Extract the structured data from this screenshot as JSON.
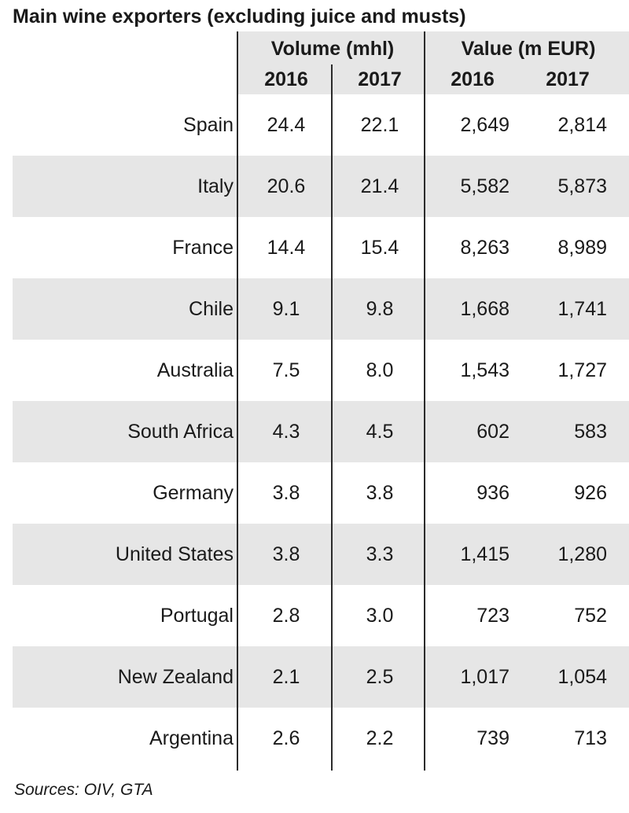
{
  "title": "Main wine exporters (excluding juice and musts)",
  "header": {
    "volume_label": "Volume (mhl)",
    "value_label": "Value (m EUR)",
    "years": [
      "2016",
      "2017",
      "2016",
      "2017"
    ]
  },
  "source": "Sources: OIV, GTA",
  "chart_data": {
    "type": "table",
    "title": "Main wine exporters (excluding juice and musts)",
    "columns": [
      "Volume (mhl) 2016",
      "Volume (mhl) 2017",
      "Value (m EUR) 2016",
      "Value (m EUR) 2017"
    ],
    "rows": [
      {
        "country": "Spain",
        "cells": [
          "24.4",
          "22.1",
          "2,649",
          "2,814"
        ]
      },
      {
        "country": "Italy",
        "cells": [
          "20.6",
          "21.4",
          "5,582",
          "5,873"
        ]
      },
      {
        "country": "France",
        "cells": [
          "14.4",
          "15.4",
          "8,263",
          "8,989"
        ]
      },
      {
        "country": "Chile",
        "cells": [
          "9.1",
          "9.8",
          "1,668",
          "1,741"
        ]
      },
      {
        "country": "Australia",
        "cells": [
          "7.5",
          "8.0",
          "1,543",
          "1,727"
        ]
      },
      {
        "country": "South Africa",
        "cells": [
          "4.3",
          "4.5",
          "602",
          "583"
        ]
      },
      {
        "country": "Germany",
        "cells": [
          "3.8",
          "3.8",
          "936",
          "926"
        ]
      },
      {
        "country": "United States",
        "cells": [
          "3.8",
          "3.3",
          "1,415",
          "1,280"
        ]
      },
      {
        "country": "Portugal",
        "cells": [
          "2.8",
          "3.0",
          "723",
          "752"
        ]
      },
      {
        "country": "New Zealand",
        "cells": [
          "2.1",
          "2.5",
          "1,017",
          "1,054"
        ]
      },
      {
        "country": "Argentina",
        "cells": [
          "2.6",
          "2.2",
          "739",
          "713"
        ]
      }
    ],
    "colors": {
      "band": "#e6e6e6",
      "rule": "#2b2b2b",
      "text": "#1a1a1a"
    }
  }
}
